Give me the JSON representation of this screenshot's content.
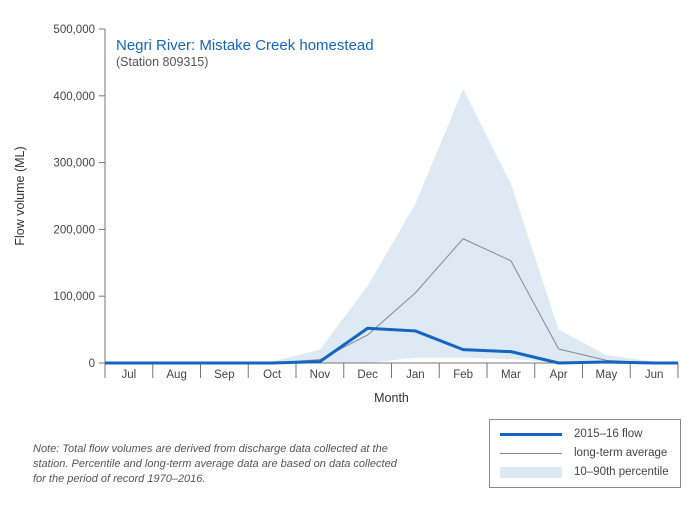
{
  "chart_data": {
    "type": "line",
    "title": "Negri River: Mistake Creek homestead",
    "subtitle": "(Station 809315)",
    "xlabel": "Month",
    "ylabel": "Flow volume (ML)",
    "ylim": [
      0,
      500000
    ],
    "yticks": [
      0,
      100000,
      200000,
      300000,
      400000,
      500000
    ],
    "ytick_labels": [
      "0",
      "100,000",
      "200,000",
      "300,000",
      "400,000",
      "500,000"
    ],
    "categories": [
      "Jul",
      "Aug",
      "Sep",
      "Oct",
      "Nov",
      "Dec",
      "Jan",
      "Feb",
      "Mar",
      "Apr",
      "May",
      "Jun"
    ],
    "series": [
      {
        "name": "2015–16 flow",
        "color": "#1565c0",
        "values": [
          0,
          0,
          0,
          0,
          2000,
          52000,
          48000,
          20000,
          17000,
          0,
          1500,
          0
        ]
      },
      {
        "name": "long-term average",
        "color": "#8a8a8a",
        "values": [
          0,
          0,
          0,
          0,
          5000,
          42000,
          105000,
          186000,
          153000,
          21000,
          4000,
          0
        ]
      }
    ],
    "band": {
      "name": "10–90th percentile",
      "color": "#dde9f3",
      "low": [
        0,
        0,
        0,
        0,
        0,
        0,
        8000,
        8000,
        6000,
        0,
        0,
        0
      ],
      "high": [
        0,
        0,
        0,
        2000,
        20000,
        115000,
        238000,
        410000,
        268000,
        50000,
        12000,
        2000
      ]
    },
    "grid": false,
    "legend_position": "bottom-right"
  },
  "note": "Note: Total flow volumes are derived from discharge data collected at the station. Percentile and long-term average data are based on data collected for the period of record 1970–2016."
}
